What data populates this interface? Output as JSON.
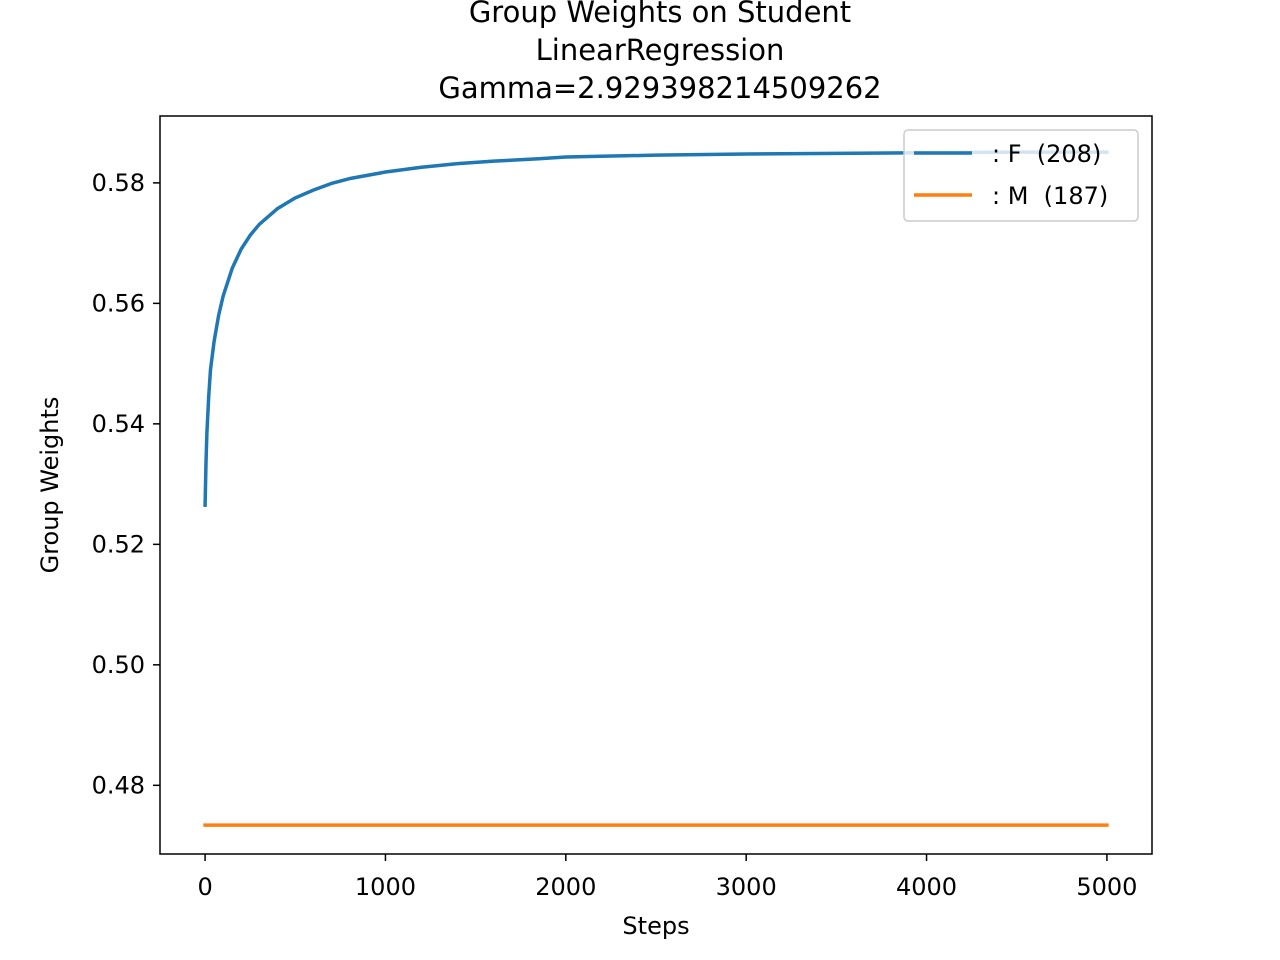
{
  "chart_data": {
    "type": "line",
    "title_lines": [
      "Group Weights on Student",
      "LinearRegression",
      "Gamma=2.929398214509262"
    ],
    "xlabel": "Steps",
    "ylabel": "Group Weights",
    "xlim": [
      -250,
      5250
    ],
    "ylim": [
      0.4686,
      0.5911
    ],
    "xticks": [
      0,
      1000,
      2000,
      3000,
      4000,
      5000
    ],
    "yticks": [
      0.48,
      0.5,
      0.52,
      0.54,
      0.56,
      0.58
    ],
    "ytick_labels": [
      "0.48",
      "0.50",
      "0.52",
      "0.54",
      "0.56",
      "0.58"
    ],
    "legend_position": "upper right",
    "grid": false,
    "series": [
      {
        "name": ": F  (208)",
        "color": "#1f77b4",
        "x": [
          0,
          5,
          10,
          20,
          30,
          50,
          75,
          100,
          150,
          200,
          250,
          300,
          400,
          500,
          600,
          700,
          800,
          1000,
          1200,
          1400,
          1600,
          1850,
          2000,
          2500,
          3000,
          3500,
          4000,
          4500,
          5000
        ],
        "y": [
          0.5265,
          0.5335,
          0.5385,
          0.5445,
          0.549,
          0.5537,
          0.558,
          0.5612,
          0.5658,
          0.569,
          0.5713,
          0.5731,
          0.5757,
          0.5775,
          0.5788,
          0.5799,
          0.5807,
          0.5818,
          0.5826,
          0.5832,
          0.5836,
          0.584,
          0.5843,
          0.5846,
          0.5848,
          0.5849,
          0.585,
          0.5851,
          0.5851
        ]
      },
      {
        "name": ": M  (187)",
        "color": "#ff7f0e",
        "x": [
          0,
          5000
        ],
        "y": [
          0.4734,
          0.4734
        ]
      }
    ]
  }
}
